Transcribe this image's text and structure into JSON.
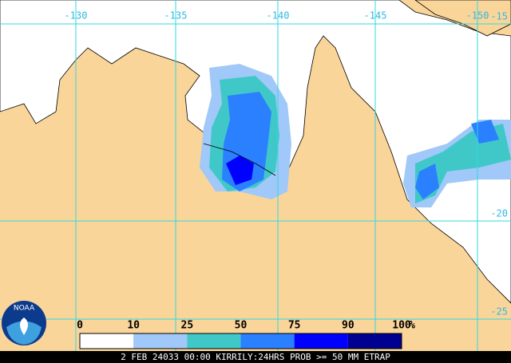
{
  "map": {
    "longitude_labels": [
      "-130",
      "-135",
      "-140",
      "-145",
      "-150"
    ],
    "latitude_labels": [
      "-15",
      "-20",
      "-25"
    ],
    "logo": "NOAA",
    "legend": {
      "labels": [
        "0",
        "10",
        "25",
        "50",
        "75",
        "90",
        "100"
      ],
      "unit": "%",
      "colors": [
        "#ffffff",
        "#a0c8f8",
        "#40c8c8",
        "#2a80ff",
        "#0000ff",
        "#000090"
      ]
    },
    "footer": "2 FEB 24033 00:00 KIRRILY:24HRS PROB >= 50 MM ETRAP"
  }
}
